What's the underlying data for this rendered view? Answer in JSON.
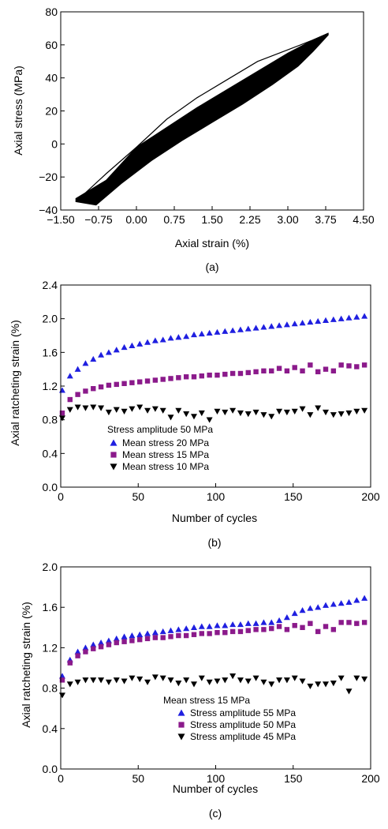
{
  "chart_data": [
    {
      "panel_label": "(a)",
      "type": "line",
      "xlabel": "Axial strain (%)",
      "ylabel": "Axial stress (MPa)",
      "xlim": [
        -1.5,
        4.5
      ],
      "ylim": [
        -40,
        80
      ],
      "xticks": [
        -1.5,
        -0.75,
        0.0,
        0.75,
        1.5,
        2.25,
        3.0,
        3.75,
        4.5
      ],
      "xtick_labels": [
        "−1.50",
        "−0.75",
        "0.00",
        "0.75",
        "1.50",
        "2.25",
        "3.00",
        "3.75",
        "4.50"
      ],
      "yticks": [
        -40,
        -20,
        0,
        20,
        40,
        60,
        80
      ],
      "ytick_labels": [
        "−40",
        "−20",
        "0",
        "20",
        "40",
        "60",
        "80"
      ],
      "grid": false,
      "band": {
        "description_units": "strain %, stress MPa",
        "upper_edge": [
          [
            -1.2,
            -33
          ],
          [
            -0.6,
            -22
          ],
          [
            0.0,
            -2
          ],
          [
            0.6,
            10
          ],
          [
            1.2,
            22
          ],
          [
            1.8,
            33
          ],
          [
            2.4,
            44
          ],
          [
            3.0,
            55
          ],
          [
            3.5,
            63
          ],
          [
            3.8,
            67
          ]
        ],
        "lower_edge": [
          [
            -1.2,
            -35
          ],
          [
            -0.8,
            -37
          ],
          [
            -0.3,
            -24
          ],
          [
            0.3,
            -10
          ],
          [
            0.9,
            2
          ],
          [
            1.5,
            13
          ],
          [
            2.1,
            24
          ],
          [
            2.7,
            36
          ],
          [
            3.2,
            47
          ],
          [
            3.5,
            56
          ],
          [
            3.8,
            66
          ]
        ]
      },
      "first_loop": [
        [
          -1.2,
          -35
        ],
        [
          -0.6,
          -18
        ],
        [
          0.0,
          -2
        ],
        [
          0.6,
          15
        ],
        [
          1.2,
          28
        ],
        [
          1.8,
          39
        ],
        [
          2.4,
          50
        ],
        [
          3.0,
          57
        ],
        [
          3.5,
          63
        ],
        [
          3.8,
          67
        ]
      ]
    },
    {
      "panel_label": "(b)",
      "type": "scatter",
      "xlabel": "Number of cycles",
      "ylabel": "Axial ratcheting strain (%)",
      "xlim": [
        0,
        200
      ],
      "ylim": [
        0.0,
        2.4
      ],
      "xticks": [
        0,
        50,
        100,
        150,
        200
      ],
      "xtick_labels": [
        "0",
        "50",
        "100",
        "150",
        "200"
      ],
      "yticks": [
        0.0,
        0.4,
        0.8,
        1.2,
        1.6,
        2.0,
        2.4
      ],
      "ytick_labels": [
        "0.0",
        "0.4",
        "0.8",
        "1.2",
        "1.6",
        "2.0",
        "2.4"
      ],
      "legend_title": "Stress amplitude 50 MPa",
      "legend_position": "lower-left",
      "series": [
        {
          "name": "Mean stress 20 MPa",
          "marker": "triangle-up",
          "color": "#1f1fe0",
          "x": [
            1,
            6,
            11,
            16,
            21,
            26,
            31,
            36,
            41,
            46,
            51,
            56,
            61,
            66,
            71,
            76,
            81,
            86,
            91,
            96,
            101,
            106,
            111,
            116,
            121,
            126,
            131,
            136,
            141,
            146,
            151,
            156,
            161,
            166,
            171,
            176,
            181,
            186,
            191,
            196
          ],
          "y": [
            1.15,
            1.32,
            1.4,
            1.47,
            1.52,
            1.57,
            1.6,
            1.63,
            1.66,
            1.68,
            1.7,
            1.72,
            1.74,
            1.75,
            1.77,
            1.78,
            1.79,
            1.81,
            1.82,
            1.83,
            1.84,
            1.85,
            1.86,
            1.87,
            1.88,
            1.89,
            1.9,
            1.91,
            1.92,
            1.93,
            1.94,
            1.95,
            1.96,
            1.97,
            1.98,
            1.99,
            2.0,
            2.01,
            2.02,
            2.03
          ]
        },
        {
          "name": "Mean stress 15 MPa",
          "marker": "square",
          "color": "#8b1a8b",
          "x": [
            1,
            6,
            11,
            16,
            21,
            26,
            31,
            36,
            41,
            46,
            51,
            56,
            61,
            66,
            71,
            76,
            81,
            86,
            91,
            96,
            101,
            106,
            111,
            116,
            121,
            126,
            131,
            136,
            141,
            146,
            151,
            156,
            161,
            166,
            171,
            176,
            181,
            186,
            191,
            196
          ],
          "y": [
            0.88,
            1.04,
            1.1,
            1.14,
            1.17,
            1.19,
            1.21,
            1.22,
            1.23,
            1.24,
            1.25,
            1.26,
            1.27,
            1.28,
            1.29,
            1.3,
            1.31,
            1.31,
            1.32,
            1.33,
            1.33,
            1.34,
            1.35,
            1.35,
            1.36,
            1.37,
            1.38,
            1.38,
            1.41,
            1.38,
            1.42,
            1.38,
            1.45,
            1.37,
            1.4,
            1.38,
            1.45,
            1.44,
            1.43,
            1.45
          ]
        },
        {
          "name": "Mean stress 10 MPa",
          "marker": "triangle-down",
          "color": "#000000",
          "x": [
            1,
            6,
            11,
            16,
            21,
            26,
            31,
            36,
            41,
            46,
            51,
            56,
            61,
            66,
            71,
            76,
            81,
            86,
            91,
            96,
            101,
            106,
            111,
            116,
            121,
            126,
            131,
            136,
            141,
            146,
            151,
            156,
            161,
            166,
            171,
            176,
            181,
            186,
            191,
            196
          ],
          "y": [
            0.82,
            0.92,
            0.95,
            0.94,
            0.95,
            0.94,
            0.89,
            0.92,
            0.9,
            0.93,
            0.95,
            0.91,
            0.93,
            0.91,
            0.83,
            0.91,
            0.87,
            0.84,
            0.88,
            0.8,
            0.9,
            0.89,
            0.91,
            0.88,
            0.87,
            0.89,
            0.86,
            0.84,
            0.9,
            0.89,
            0.9,
            0.93,
            0.86,
            0.94,
            0.89,
            0.86,
            0.87,
            0.88,
            0.9,
            0.91
          ]
        }
      ]
    },
    {
      "panel_label": "(c)",
      "type": "scatter",
      "xlabel": "Number of cycles",
      "ylabel": "Axial ratcheting strain (%)",
      "xlim": [
        0,
        200
      ],
      "ylim": [
        0.0,
        2.0
      ],
      "xticks": [
        0,
        50,
        100,
        150,
        200
      ],
      "xtick_labels": [
        "0",
        "50",
        "100",
        "150",
        "200"
      ],
      "yticks": [
        0.0,
        0.4,
        0.8,
        1.2,
        1.6,
        2.0
      ],
      "ytick_labels": [
        "0.0",
        "0.4",
        "0.8",
        "1.2",
        "1.6",
        "2.0"
      ],
      "legend_title": "Mean stress 15 MPa",
      "legend_position": "lower-right",
      "series": [
        {
          "name": "Stress amplitude 55 MPa",
          "marker": "triangle-up",
          "color": "#1f1fe0",
          "x": [
            1,
            6,
            11,
            16,
            21,
            26,
            31,
            36,
            41,
            46,
            51,
            56,
            61,
            66,
            71,
            76,
            81,
            86,
            91,
            96,
            101,
            106,
            111,
            116,
            121,
            126,
            131,
            136,
            141,
            146,
            151,
            156,
            161,
            166,
            171,
            176,
            181,
            186,
            191,
            196
          ],
          "y": [
            0.92,
            1.08,
            1.16,
            1.2,
            1.23,
            1.25,
            1.27,
            1.29,
            1.31,
            1.32,
            1.33,
            1.34,
            1.35,
            1.36,
            1.37,
            1.38,
            1.39,
            1.4,
            1.41,
            1.41,
            1.42,
            1.42,
            1.43,
            1.43,
            1.44,
            1.44,
            1.45,
            1.45,
            1.47,
            1.5,
            1.54,
            1.57,
            1.59,
            1.6,
            1.62,
            1.63,
            1.64,
            1.65,
            1.67,
            1.69
          ]
        },
        {
          "name": "Stress amplitude 50 MPa",
          "marker": "square",
          "color": "#8b1a8b",
          "x": [
            1,
            6,
            11,
            16,
            21,
            26,
            31,
            36,
            41,
            46,
            51,
            56,
            61,
            66,
            71,
            76,
            81,
            86,
            91,
            96,
            101,
            106,
            111,
            116,
            121,
            126,
            131,
            136,
            141,
            146,
            151,
            156,
            161,
            166,
            171,
            176,
            181,
            186,
            191,
            196
          ],
          "y": [
            0.88,
            1.05,
            1.12,
            1.16,
            1.19,
            1.21,
            1.23,
            1.25,
            1.26,
            1.27,
            1.28,
            1.29,
            1.3,
            1.3,
            1.31,
            1.32,
            1.32,
            1.33,
            1.34,
            1.34,
            1.35,
            1.35,
            1.36,
            1.36,
            1.37,
            1.38,
            1.38,
            1.39,
            1.41,
            1.38,
            1.42,
            1.4,
            1.44,
            1.36,
            1.41,
            1.38,
            1.45,
            1.45,
            1.44,
            1.45
          ]
        },
        {
          "name": "Stress amplitude 45 MPa",
          "marker": "triangle-down",
          "color": "#000000",
          "x": [
            1,
            6,
            11,
            16,
            21,
            26,
            31,
            36,
            41,
            46,
            51,
            56,
            61,
            66,
            71,
            76,
            81,
            86,
            91,
            96,
            101,
            106,
            111,
            116,
            121,
            126,
            131,
            136,
            141,
            146,
            151,
            156,
            161,
            166,
            171,
            176,
            181,
            186,
            191,
            196
          ],
          "y": [
            0.73,
            0.84,
            0.86,
            0.88,
            0.88,
            0.88,
            0.86,
            0.88,
            0.87,
            0.9,
            0.89,
            0.86,
            0.91,
            0.9,
            0.88,
            0.85,
            0.88,
            0.84,
            0.9,
            0.86,
            0.87,
            0.88,
            0.92,
            0.88,
            0.87,
            0.9,
            0.86,
            0.84,
            0.88,
            0.88,
            0.9,
            0.87,
            0.82,
            0.84,
            0.84,
            0.85,
            0.9,
            0.77,
            0.9,
            0.89
          ]
        }
      ]
    }
  ]
}
